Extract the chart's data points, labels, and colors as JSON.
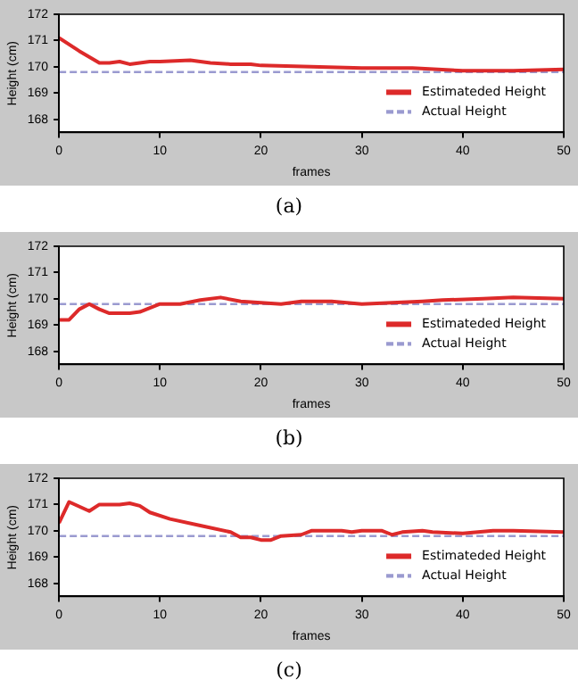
{
  "chart_data": [
    {
      "type": "line",
      "xlabel": "frames",
      "ylabel": "Height (cm)",
      "xlim": [
        0,
        50
      ],
      "xticks": [
        0,
        10,
        20,
        30,
        40,
        50
      ],
      "ylim": [
        167.5,
        172
      ],
      "yticks": [
        168,
        169,
        170,
        171,
        172
      ],
      "grid": false,
      "legend": "bottom right",
      "marker": "none",
      "annotations": [
        "(a)"
      ],
      "series": [
        {
          "name": "Estimateded Height",
          "color": "#dd2a2a",
          "line_style": "solid",
          "x": [
            0,
            2,
            4,
            5,
            6,
            7,
            9,
            10,
            13,
            15,
            17,
            19,
            20,
            25,
            30,
            35,
            40,
            45,
            50
          ],
          "values": [
            171.1,
            170.6,
            170.15,
            170.15,
            170.2,
            170.1,
            170.2,
            170.2,
            170.25,
            170.15,
            170.1,
            170.1,
            170.05,
            170.0,
            169.95,
            169.95,
            169.85,
            169.85,
            169.9
          ]
        },
        {
          "name": "Actual Height",
          "color": "#9a9ad0",
          "line_style": "dashed",
          "x": [
            0,
            50
          ],
          "values": [
            169.8,
            169.8
          ]
        }
      ]
    },
    {
      "type": "line",
      "xlabel": "frames",
      "ylabel": "Height (cm)",
      "xlim": [
        0,
        50
      ],
      "xticks": [
        0,
        10,
        20,
        30,
        40,
        50
      ],
      "ylim": [
        167.5,
        172
      ],
      "yticks": [
        168,
        169,
        170,
        171,
        172
      ],
      "grid": false,
      "legend": "bottom right",
      "marker": "none",
      "annotations": [
        "(b)"
      ],
      "series": [
        {
          "name": "Estimateded Height",
          "color": "#dd2a2a",
          "line_style": "solid",
          "x": [
            0,
            1,
            2,
            3,
            4,
            5,
            7,
            8,
            10,
            12,
            14,
            16,
            18,
            20,
            22,
            24,
            27,
            30,
            33,
            36,
            38,
            42,
            45,
            50
          ],
          "values": [
            169.2,
            169.2,
            169.6,
            169.8,
            169.6,
            169.45,
            169.45,
            169.5,
            169.8,
            169.8,
            169.95,
            170.05,
            169.9,
            169.85,
            169.8,
            169.9,
            169.9,
            169.8,
            169.85,
            169.9,
            169.95,
            170.0,
            170.05,
            170.0
          ]
        },
        {
          "name": "Actual Height",
          "color": "#9a9ad0",
          "line_style": "dashed",
          "x": [
            0,
            50
          ],
          "values": [
            169.8,
            169.8
          ]
        }
      ]
    },
    {
      "type": "line",
      "xlabel": "frames",
      "ylabel": "Height (cm)",
      "xlim": [
        0,
        50
      ],
      "xticks": [
        0,
        10,
        20,
        30,
        40,
        50
      ],
      "ylim": [
        167.5,
        172
      ],
      "yticks": [
        168,
        169,
        170,
        171,
        172
      ],
      "grid": false,
      "legend": "bottom right",
      "marker": "none",
      "annotations": [
        "(c)"
      ],
      "series": [
        {
          "name": "Estimateded Height",
          "color": "#dd2a2a",
          "line_style": "solid",
          "x": [
            0,
            1,
            3,
            4,
            6,
            7,
            8,
            9,
            11,
            14,
            17,
            18,
            19,
            20,
            21,
            22,
            24,
            25,
            28,
            29,
            30,
            32,
            33,
            34,
            36,
            37,
            40,
            43,
            45,
            50
          ],
          "values": [
            170.3,
            171.1,
            170.75,
            171.0,
            171.0,
            171.05,
            170.95,
            170.7,
            170.45,
            170.2,
            169.95,
            169.75,
            169.75,
            169.65,
            169.65,
            169.8,
            169.85,
            170.0,
            170.0,
            169.95,
            170.0,
            170.0,
            169.85,
            169.95,
            170.0,
            169.95,
            169.9,
            170.0,
            170.0,
            169.95
          ]
        },
        {
          "name": "Actual Height",
          "color": "#9a9ad0",
          "line_style": "dashed",
          "x": [
            0,
            50
          ],
          "values": [
            169.8,
            169.8
          ]
        }
      ]
    }
  ]
}
